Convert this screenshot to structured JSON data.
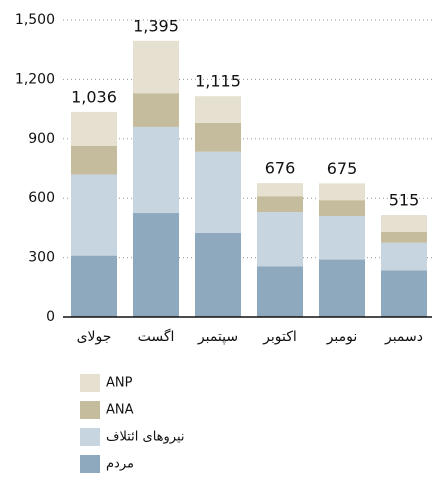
{
  "chart_data": {
    "type": "stacked_bar",
    "categories": [
      "جولای",
      "اگست",
      "سپتمبر",
      "اکتوبر",
      "نومبر",
      "دسمبر"
    ],
    "series": [
      {
        "name": "مردم",
        "color": "#8ea8bd",
        "values": [
          310,
          525,
          425,
          255,
          290,
          235
        ]
      },
      {
        "name": "نیروهای ائتلاف",
        "color": "#c7d5e1",
        "values": [
          410,
          435,
          410,
          275,
          220,
          140
        ]
      },
      {
        "name": "ANA",
        "color": "#c4bc9c",
        "values": [
          145,
          170,
          145,
          80,
          80,
          55
        ]
      },
      {
        "name": "ANP",
        "color": "#e6e0d1",
        "values": [
          171,
          265,
          135,
          66,
          85,
          85
        ]
      }
    ],
    "totals": [
      1036,
      1395,
      1115,
      676,
      675,
      515
    ],
    "total_labels": [
      "1,036",
      "1,395",
      "1,115",
      "676",
      "675",
      "515"
    ],
    "ylim": [
      0,
      1500
    ],
    "yticks": [
      0,
      300,
      600,
      900,
      {
        "value": 1200,
        "label": "1,200"
      },
      {
        "value": 1500,
        "label": "1,500"
      }
    ],
    "grid": true
  }
}
